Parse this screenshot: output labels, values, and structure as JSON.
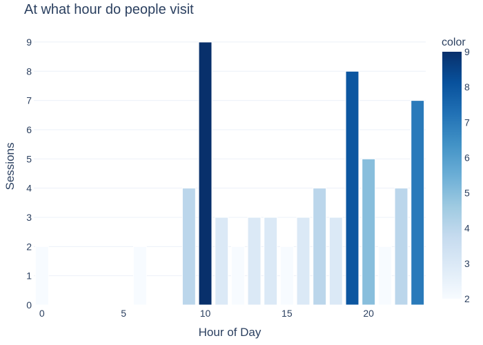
{
  "chart_data": {
    "type": "bar",
    "title": "At what hour do people visit",
    "xlabel": "Hour of Day",
    "ylabel": "Sessions",
    "x": [
      0,
      6,
      9,
      10,
      11,
      12,
      13,
      14,
      15,
      16,
      17,
      18,
      19,
      20,
      21,
      22,
      23
    ],
    "values": [
      2,
      2,
      4,
      9,
      3,
      2,
      3,
      3,
      2,
      3,
      4,
      3,
      8,
      5,
      2,
      4,
      7
    ],
    "xlim": [
      -0.5,
      23.5
    ],
    "ylim": [
      0,
      9.4
    ],
    "x_ticks": [
      0,
      5,
      10,
      15,
      20
    ],
    "y_ticks": [
      0,
      1,
      2,
      3,
      4,
      5,
      6,
      7,
      8,
      9
    ],
    "grid": true,
    "colorbar": {
      "title": "color",
      "range": [
        2,
        9
      ],
      "ticks": [
        2,
        3,
        4,
        5,
        6,
        7,
        8,
        9
      ],
      "colorscale": [
        "#f7fbff",
        "#deebf7",
        "#c6dbef",
        "#9ecae1",
        "#6baed6",
        "#4292c6",
        "#2171b5",
        "#08519c",
        "#08306b"
      ]
    }
  }
}
